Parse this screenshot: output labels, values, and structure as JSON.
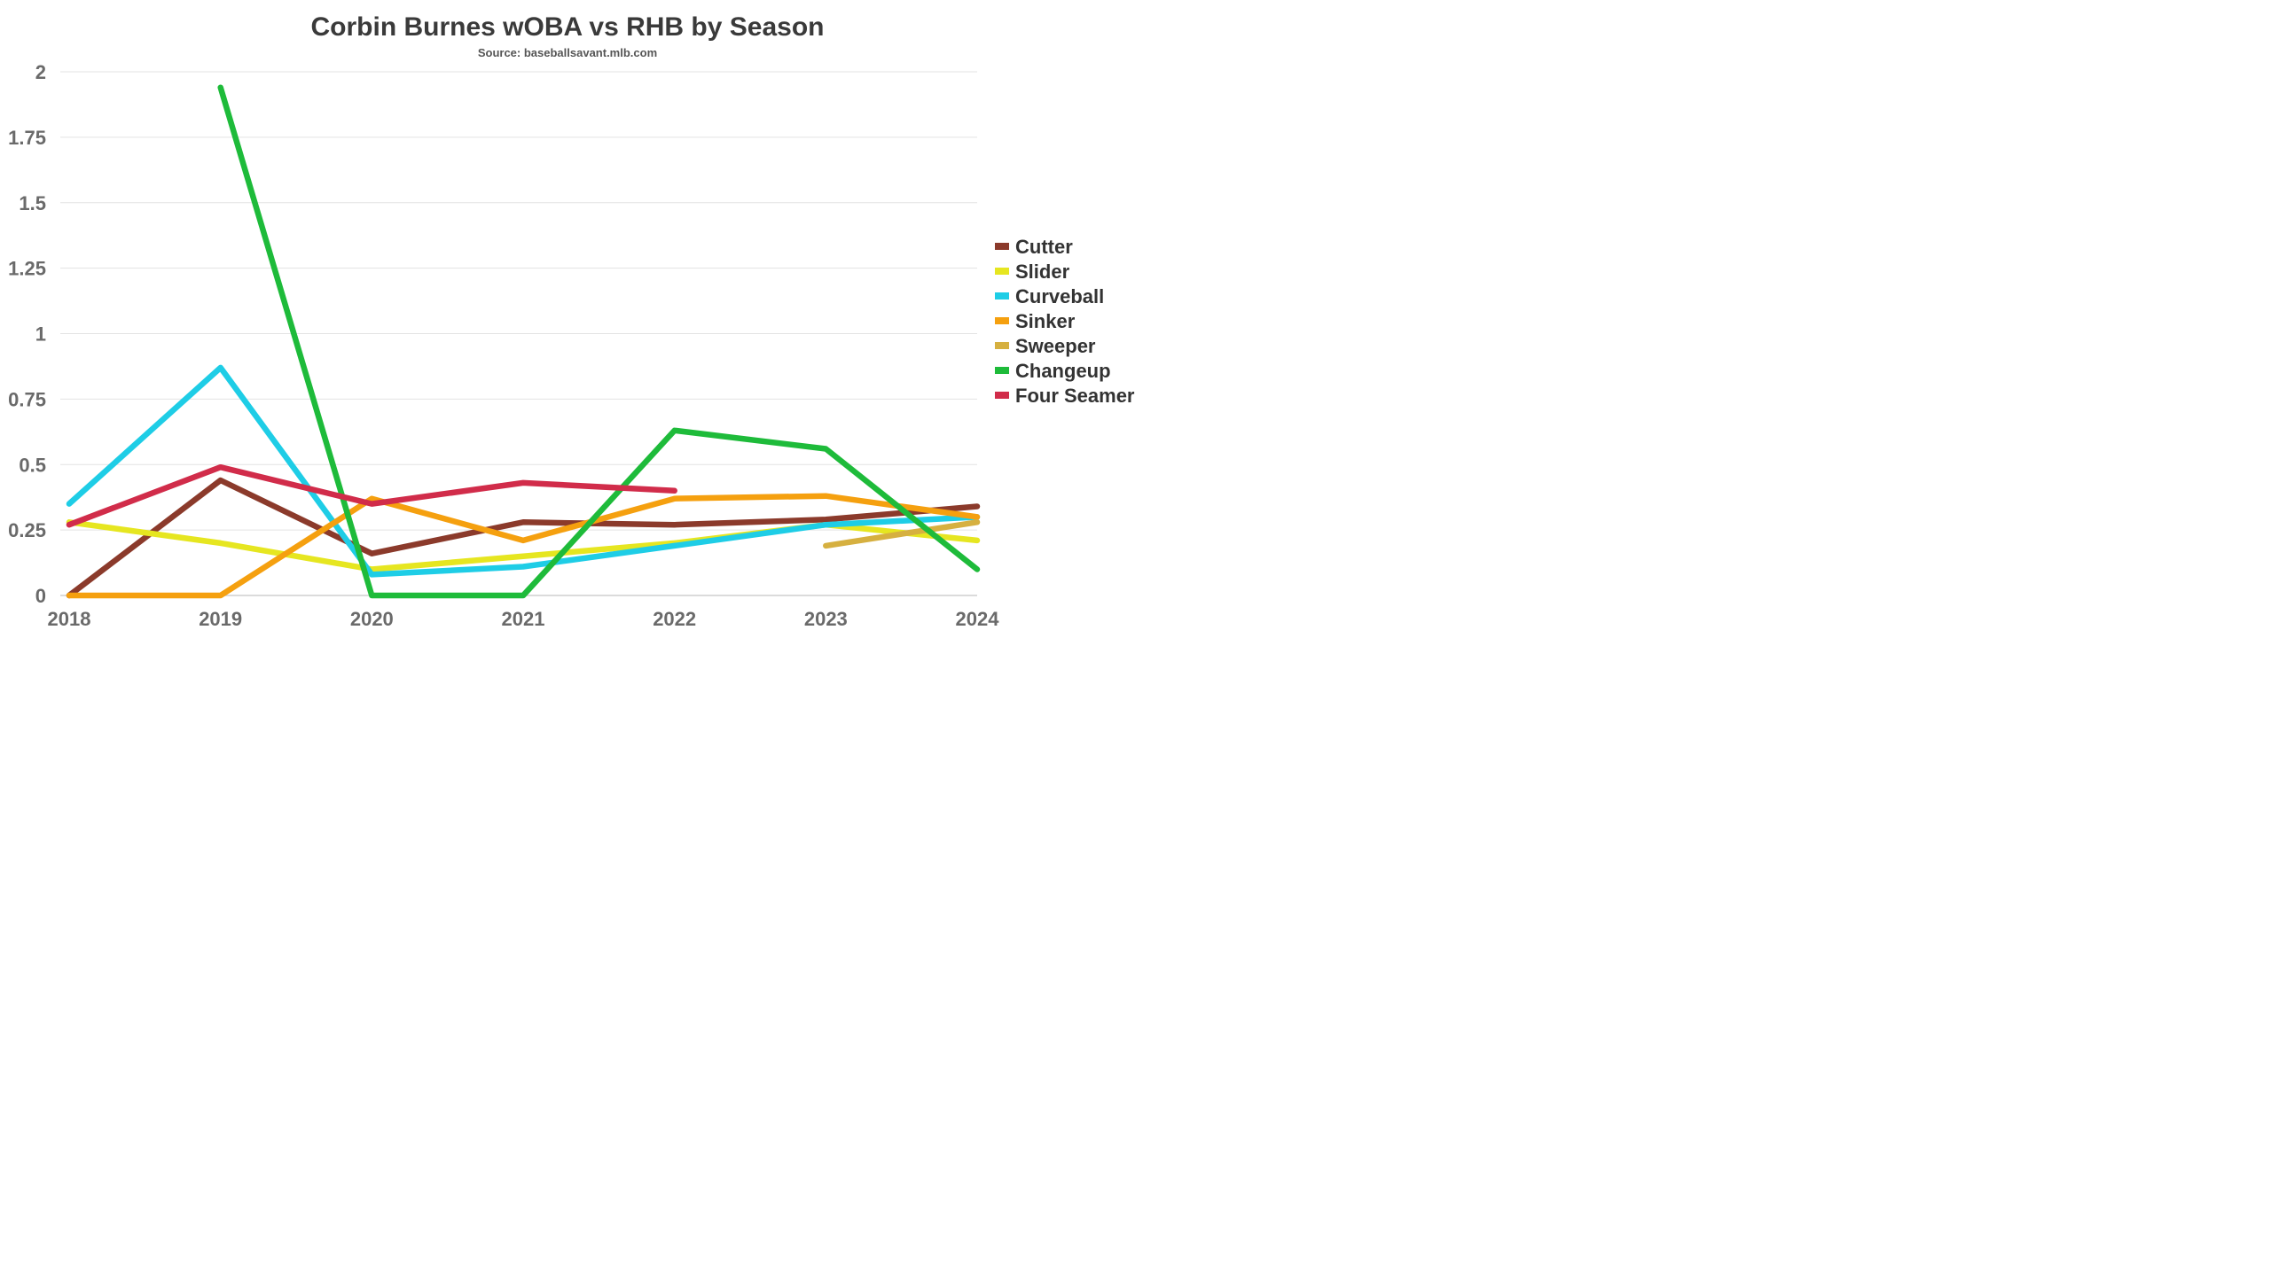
{
  "chart_data": {
    "type": "line",
    "title": "Corbin Burnes wOBA vs RHB by Season",
    "subtitle": "Source: baseballsavant.mlb.com",
    "categories": [
      "2018",
      "2019",
      "2020",
      "2021",
      "2022",
      "2023",
      "2024"
    ],
    "ylim": [
      0,
      2
    ],
    "yticks": [
      "0",
      "0.25",
      "0.5",
      "0.75",
      "1",
      "1.25",
      "1.5",
      "1.75",
      "2"
    ],
    "grid": true,
    "legend_position": "right",
    "series": [
      {
        "name": "Cutter",
        "color": "#8b3a2b",
        "values": [
          0,
          0.44,
          0.16,
          0.28,
          0.27,
          0.29,
          0.34
        ]
      },
      {
        "name": "Slider",
        "color": "#e6e620",
        "values": [
          0.28,
          0.2,
          0.1,
          0.15,
          0.2,
          0.27,
          0.21
        ]
      },
      {
        "name": "Curveball",
        "color": "#1ecde6",
        "values": [
          0.35,
          0.87,
          0.08,
          0.11,
          0.19,
          0.27,
          0.3
        ]
      },
      {
        "name": "Sinker",
        "color": "#f5a00f",
        "values": [
          0,
          0,
          0.37,
          0.21,
          0.37,
          0.38,
          0.3
        ]
      },
      {
        "name": "Sweeper",
        "color": "#d6b040",
        "values": [
          null,
          null,
          null,
          null,
          null,
          0.19,
          0.28
        ]
      },
      {
        "name": "Changeup",
        "color": "#1ebb3a",
        "values": [
          null,
          1.94,
          0,
          0,
          0.63,
          0.56,
          0.1
        ]
      },
      {
        "name": "Four Seamer",
        "color": "#d12c4a",
        "values": [
          0.27,
          0.49,
          0.35,
          0.43,
          0.4,
          null,
          null
        ]
      }
    ]
  }
}
